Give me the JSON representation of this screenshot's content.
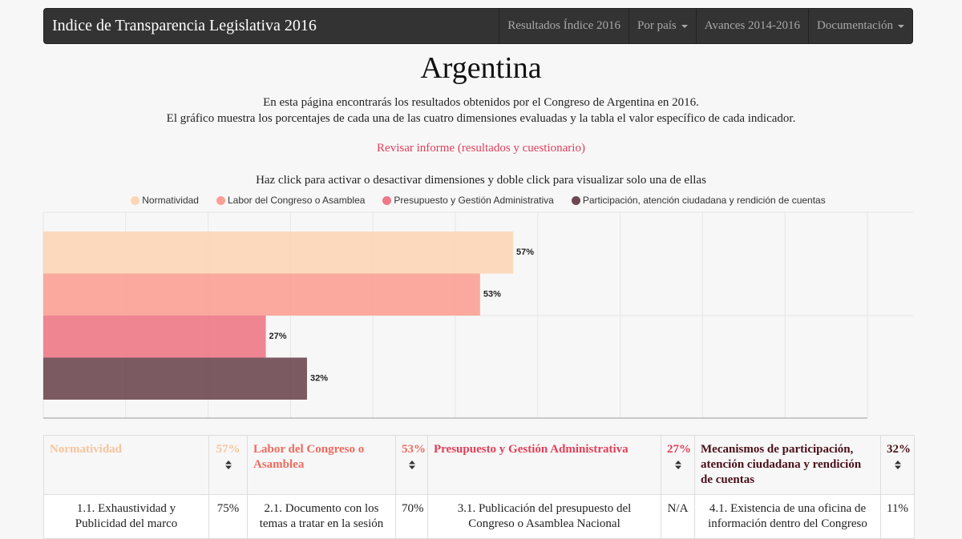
{
  "navbar": {
    "brand": "Indice de Transparencia Legislativa 2016",
    "items": [
      {
        "label": "Resultados Índice 2016",
        "dropdown": false
      },
      {
        "label": "Por país",
        "dropdown": true
      },
      {
        "label": "Avances 2014-2016",
        "dropdown": false
      },
      {
        "label": "Documentación",
        "dropdown": true
      }
    ]
  },
  "header": {
    "title": "Argentina",
    "intro": [
      "En esta página encontrarás los resultados obtenidos por el Congreso de Argentina en 2016.",
      "El gráfico muestra los porcentajes de cada una de las cuatro dimensiones evaluadas y la tabla el valor específico de cada indicador."
    ],
    "link": "Revisar informe (resultados y cuestionario)"
  },
  "chart_data": {
    "type": "bar",
    "orientation": "horizontal",
    "subtitle": "Haz click para activar o desactivar dimensiones y doble click para visualizar solo una de ellas",
    "series": [
      {
        "name": "Normatividad",
        "color": "#fcd5b5",
        "values": [
          57
        ],
        "value_labels": [
          "57%"
        ]
      },
      {
        "name": "Labor del Congreso o Asamblea",
        "color": "#fba094",
        "values": [
          53
        ],
        "value_labels": [
          "53%"
        ]
      },
      {
        "name": "Presupuesto y Gestión Administrativa",
        "color": "#ee7886",
        "values": [
          27
        ],
        "value_labels": [
          "27%"
        ]
      },
      {
        "name": "Participación, atención ciudadana y rendición de cuentas",
        "color": "#6e4850",
        "values": [
          32
        ],
        "value_labels": [
          "32%"
        ]
      }
    ],
    "xlim": [
      0,
      100
    ],
    "xticks": [
      0,
      10,
      20,
      30,
      40,
      50,
      60,
      70,
      80,
      90,
      100
    ],
    "grid": true,
    "legend": "top"
  },
  "table": {
    "header": [
      {
        "title": "Normatividad",
        "score": "57%",
        "color": "#f7c49c"
      },
      {
        "title": "Labor del Congreso o Asamblea",
        "score": "53%",
        "color": "#ef6b5e"
      },
      {
        "title": "Presupuesto y Gestión Administrativa",
        "score": "27%",
        "color": "#e0405a"
      },
      {
        "title": "Mecanismos de participación, atención ciudadana y rendición de cuentas",
        "score": "32%",
        "color": "#4a1018"
      }
    ],
    "rows": [
      [
        "1.1. Exhaustividad y Publicidad del marco",
        "75%",
        "2.1. Documento con los temas a tratar en la sesión",
        "70%",
        "3.1. Publicación del presupuesto del Congreso o Asamblea Nacional",
        "N/A",
        "4.1. Existencia de una oficina de información dentro del Congreso",
        "11%"
      ]
    ]
  }
}
